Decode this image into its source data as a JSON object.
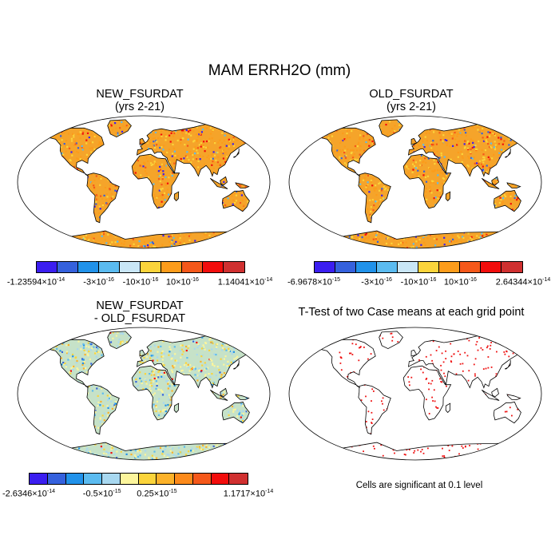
{
  "title": "MAM ERRH2O (mm)",
  "panels": {
    "new": {
      "title_line1": "NEW_FSURDAT",
      "title_line2": "(yrs 2-21)",
      "colorbar": {
        "colors": [
          "#3b1ef0",
          "#3561dd",
          "#2192ea",
          "#5bbbf0",
          "#c9e6f6",
          "#fbd43b",
          "#fc9c1b",
          "#f5581a",
          "#f20d0c",
          "#d03030"
        ],
        "labels": [
          {
            "mant": "-1.23594",
            "exp": "-14",
            "pos": 0
          },
          {
            "mant": "-3",
            "exp": "-16",
            "pos": 3
          },
          {
            "mant": "-10",
            "exp": "-16",
            "pos": 5
          },
          {
            "mant": "10",
            "exp": "-16",
            "pos": 7
          },
          {
            "mant": "1.14041",
            "exp": "-14",
            "pos": 10
          }
        ]
      }
    },
    "old": {
      "title_line1": "OLD_FSURDAT",
      "title_line2": "(yrs 2-21)",
      "colorbar": {
        "colors": [
          "#3b1ef0",
          "#3561dd",
          "#2192ea",
          "#5bbbf0",
          "#c9e6f6",
          "#fbd43b",
          "#fc9c1b",
          "#f5581a",
          "#f20d0c",
          "#d03030"
        ],
        "labels": [
          {
            "mant": "-6.9678",
            "exp": "-15",
            "pos": 0
          },
          {
            "mant": "-3",
            "exp": "-16",
            "pos": 3
          },
          {
            "mant": "-10",
            "exp": "-16",
            "pos": 5
          },
          {
            "mant": "10",
            "exp": "-16",
            "pos": 7
          },
          {
            "mant": "2.64344",
            "exp": "-14",
            "pos": 10
          }
        ]
      }
    },
    "diff": {
      "title_line1": "NEW_FSURDAT",
      "title_line2": "- OLD_FSURDAT",
      "colorbar": {
        "colors": [
          "#3b1ef0",
          "#3561dd",
          "#2192ea",
          "#5bbbf0",
          "#a8d8f0",
          "#fcf59c",
          "#fbd43b",
          "#fcb22a",
          "#fc8a1b",
          "#f5581a",
          "#f20d0c",
          "#d03030"
        ],
        "labels": [
          {
            "mant": "-2.6346",
            "exp": "-14",
            "pos": 0
          },
          {
            "mant": "-0.5",
            "exp": "-15",
            "pos": 4
          },
          {
            "mant": "0.25",
            "exp": "-15",
            "pos": 7
          },
          {
            "mant": "1.1717",
            "exp": "-14",
            "pos": 12
          }
        ]
      }
    },
    "ttest": {
      "title": "T-Test of two Case means at each grid point",
      "note": "Cells are significant at 0.1 level"
    }
  },
  "colors": {
    "land_abs": "#f5a42a",
    "land_diff": "#c6e2c8",
    "sig_dot": "#ee1111",
    "coast": "#000000"
  }
}
